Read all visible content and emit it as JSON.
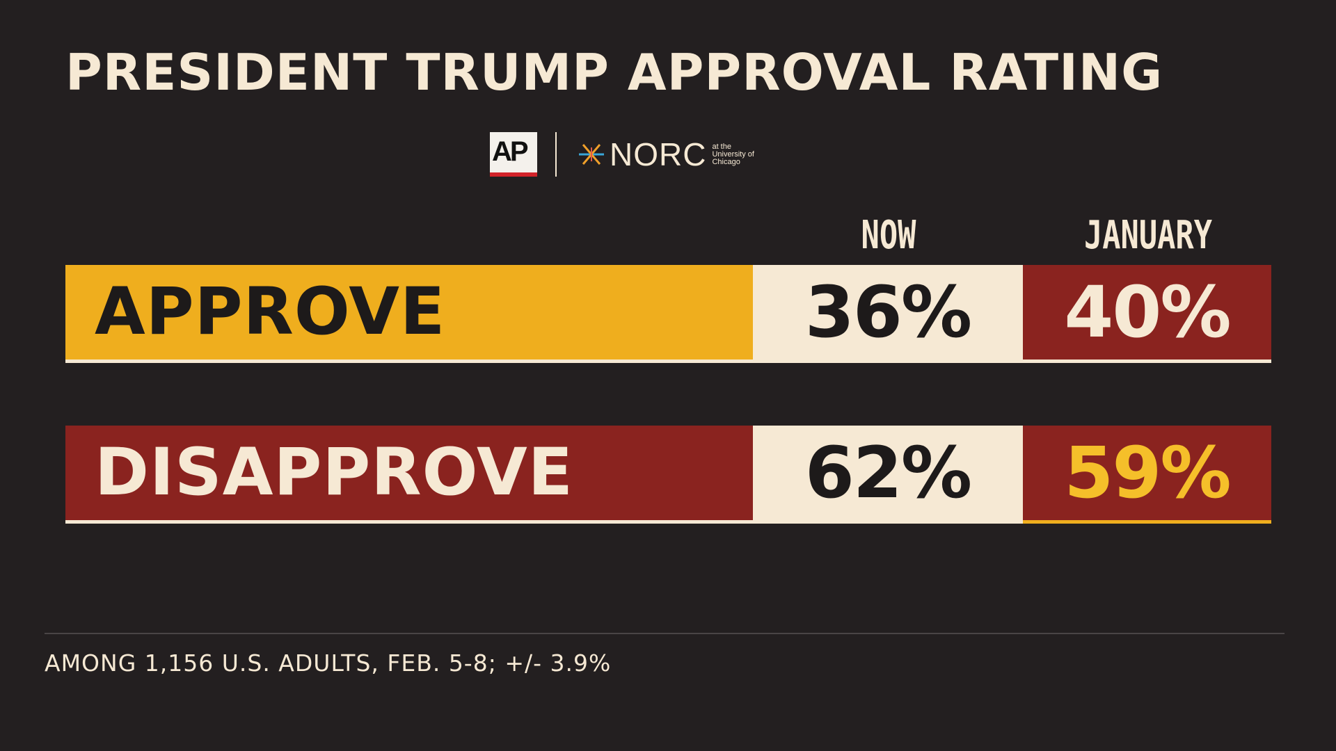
{
  "header": {
    "title": "PRESIDENT TRUMP APPROVAL RATING"
  },
  "logos": {
    "ap": "AP",
    "norc": "NORC",
    "norc_sub_line1": "at the",
    "norc_sub_line2": "University of",
    "norc_sub_line3": "Chicago"
  },
  "chart_data": {
    "type": "table",
    "title": "PRESIDENT TRUMP APPROVAL RATING",
    "columns": [
      "NOW",
      "JANUARY"
    ],
    "rows": [
      {
        "label": "APPROVE",
        "now": 36,
        "january": 40,
        "now_text": "36%",
        "january_text": "40%"
      },
      {
        "label": "DISAPPROVE",
        "now": 62,
        "january": 59,
        "now_text": "62%",
        "january_text": "59%"
      }
    ],
    "unit": "%"
  },
  "footer": {
    "note": "AMONG 1,156 U.S. ADULTS, FEB. 5-8; +/- 3.9%"
  },
  "colors": {
    "background": "#231f20",
    "cream": "#f6e9d4",
    "gold": "#efae1e",
    "red": "#8a231f",
    "dark_text": "#1d1a1a",
    "gold_text": "#f5bf2a"
  }
}
